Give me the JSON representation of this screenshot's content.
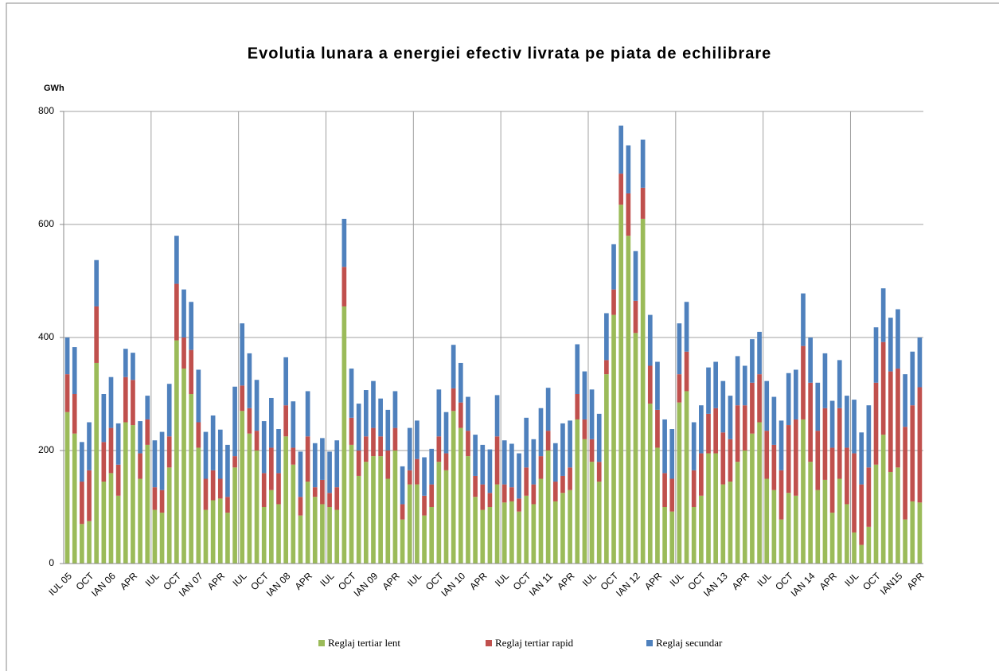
{
  "chart_data": {
    "type": "stacked-bar",
    "title": "Evolutia lunara a energiei efectiv livrata pe piata de echilibrare",
    "y_label": "GWh",
    "categories": [
      "IUL 05",
      null,
      null,
      "OCT",
      null,
      null,
      "IAN 06",
      null,
      null,
      "APR",
      null,
      null,
      "IUL",
      null,
      null,
      "OCT",
      null,
      null,
      "IAN 07",
      null,
      null,
      "APR",
      null,
      null,
      "IUL",
      null,
      null,
      "OCT",
      null,
      null,
      "IAN 08",
      null,
      null,
      "APR",
      null,
      null,
      "IUL",
      null,
      null,
      "OCT",
      null,
      null,
      "IAN 09",
      null,
      null,
      "APR",
      null,
      null,
      "IUL",
      null,
      null,
      "OCT",
      null,
      null,
      "IAN 10",
      null,
      null,
      "APR",
      null,
      null,
      "IUL",
      null,
      null,
      "OCT",
      null,
      null,
      "IAN 11",
      null,
      null,
      "APR",
      null,
      null,
      "IUL",
      null,
      null,
      "OCT",
      null,
      null,
      "IAN 12",
      null,
      null,
      "APR",
      null,
      null,
      "IUL",
      null,
      null,
      "OCT",
      null,
      null,
      "IAN 13",
      null,
      null,
      "APR",
      null,
      null,
      "IUL",
      null,
      null,
      "OCT",
      null,
      null,
      "IAN 14",
      null,
      null,
      "APR",
      null,
      null,
      "IUL",
      null,
      null,
      "OCT",
      null,
      null,
      "IAN15",
      null,
      null,
      "APR"
    ],
    "series": [
      {
        "name": "Reglaj tertiar lent",
        "color": "#9bbb59",
        "values": [
          268,
          230,
          70,
          75,
          355,
          145,
          160,
          120,
          250,
          245,
          150,
          210,
          95,
          90,
          170,
          395,
          345,
          300,
          205,
          95,
          112,
          115,
          90,
          170,
          270,
          230,
          200,
          100,
          130,
          105,
          225,
          175,
          85,
          145,
          118,
          105,
          100,
          95,
          455,
          210,
          155,
          180,
          190,
          190,
          150,
          200,
          78,
          140,
          140,
          85,
          100,
          180,
          165,
          270,
          240,
          190,
          118,
          95,
          100,
          140,
          108,
          110,
          92,
          120,
          105,
          150,
          200,
          110,
          125,
          130,
          255,
          220,
          180,
          145,
          335,
          440,
          635,
          580,
          408,
          610,
          283,
          205,
          100,
          92,
          285,
          305,
          100,
          120,
          195,
          195,
          140,
          145,
          180,
          200,
          230,
          250,
          150,
          130,
          78,
          125,
          120,
          255,
          180,
          130,
          148,
          90,
          150,
          105,
          55,
          33,
          65,
          175,
          228,
          162,
          170,
          78,
          110,
          108
        ]
      },
      {
        "name": "Reglaj tertiar rapid",
        "color": "#c0504d",
        "values": [
          67,
          70,
          75,
          90,
          100,
          70,
          80,
          55,
          80,
          80,
          45,
          45,
          40,
          40,
          55,
          100,
          55,
          78,
          45,
          55,
          53,
          35,
          28,
          20,
          45,
          45,
          35,
          60,
          75,
          55,
          55,
          30,
          33,
          80,
          17,
          43,
          25,
          40,
          70,
          48,
          45,
          45,
          50,
          35,
          50,
          40,
          27,
          25,
          45,
          35,
          40,
          45,
          30,
          40,
          45,
          45,
          37,
          45,
          25,
          85,
          32,
          25,
          23,
          50,
          35,
          40,
          35,
          35,
          30,
          40,
          45,
          35,
          40,
          35,
          25,
          45,
          55,
          75,
          57,
          55,
          67,
          67,
          60,
          58,
          50,
          70,
          65,
          75,
          70,
          80,
          92,
          75,
          100,
          80,
          90,
          85,
          85,
          80,
          87,
          120,
          135,
          130,
          140,
          105,
          127,
          115,
          125,
          100,
          140,
          107,
          105,
          145,
          164,
          178,
          175,
          164,
          170,
          204
        ]
      },
      {
        "name": "Reglaj secundar",
        "color": "#4f81bd",
        "values": [
          65,
          83,
          70,
          85,
          82,
          85,
          90,
          73,
          50,
          48,
          57,
          42,
          83,
          103,
          93,
          85,
          85,
          85,
          93,
          83,
          97,
          87,
          92,
          123,
          110,
          97,
          90,
          92,
          88,
          78,
          85,
          82,
          80,
          80,
          78,
          74,
          73,
          83,
          85,
          87,
          83,
          82,
          83,
          67,
          72,
          65,
          67,
          75,
          68,
          68,
          63,
          83,
          73,
          77,
          70,
          60,
          73,
          70,
          77,
          73,
          78,
          77,
          80,
          88,
          80,
          85,
          76,
          68,
          93,
          83,
          88,
          85,
          88,
          85,
          83,
          80,
          85,
          85,
          88,
          85,
          90,
          85,
          95,
          88,
          90,
          88,
          85,
          85,
          82,
          82,
          91,
          77,
          87,
          70,
          77,
          75,
          88,
          85,
          88,
          92,
          88,
          93,
          80,
          85,
          97,
          83,
          85,
          92,
          95,
          92,
          110,
          98,
          95,
          95,
          105,
          93,
          95,
          88
        ]
      }
    ],
    "ylim": [
      0,
      800
    ],
    "yticks": [
      0,
      200,
      400,
      600,
      800
    ],
    "grid": true,
    "legend": "bottom"
  }
}
